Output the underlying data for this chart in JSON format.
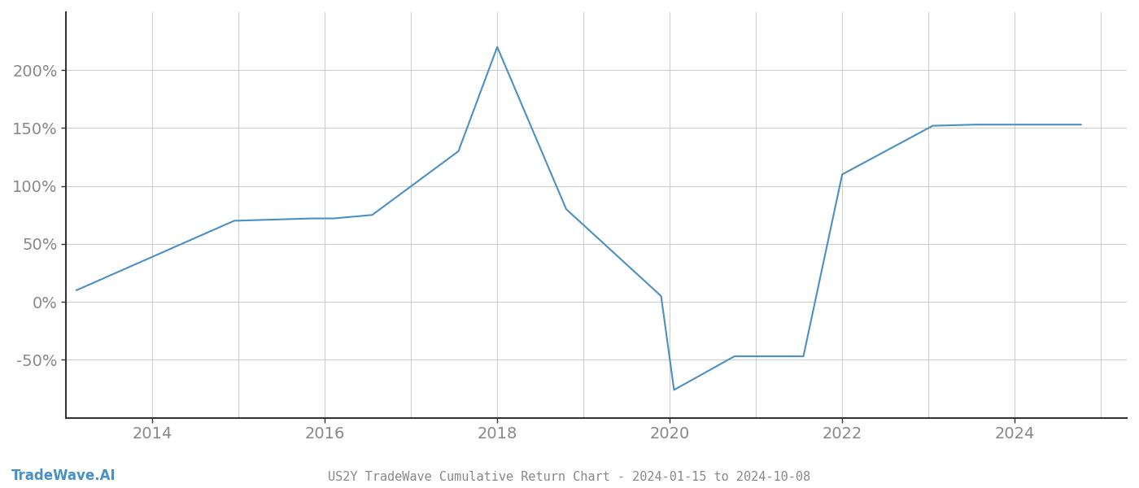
{
  "title": "US2Y TradeWave Cumulative Return Chart - 2024-01-15 to 2024-10-08",
  "watermark": "TradeWave.AI",
  "line_color": "#4A90C4",
  "background_color": "#ffffff",
  "grid_color": "#cccccc",
  "x_values": [
    2013.12,
    2014.95,
    2015.85,
    2016.1,
    2016.55,
    2017.55,
    2018.0,
    2018.8,
    2019.9,
    2020.05,
    2020.75,
    2021.55,
    2022.0,
    2023.05,
    2023.55,
    2024.77
  ],
  "y_values": [
    10,
    70,
    72,
    72,
    75,
    130,
    220,
    80,
    5,
    -76,
    -47,
    -47,
    110,
    152,
    153,
    153
  ],
  "xlim": [
    2013.0,
    2025.3
  ],
  "ylim": [
    -100,
    250
  ],
  "yticks": [
    -50,
    0,
    50,
    100,
    150,
    200
  ],
  "xticks": [
    2014,
    2016,
    2018,
    2020,
    2022,
    2024
  ],
  "minor_xticks": [
    2013,
    2015,
    2017,
    2019,
    2021,
    2023,
    2025
  ],
  "tick_label_color": "#888888",
  "tick_fontsize": 14,
  "title_fontsize": 11,
  "watermark_fontsize": 12,
  "spine_color": "#333333"
}
